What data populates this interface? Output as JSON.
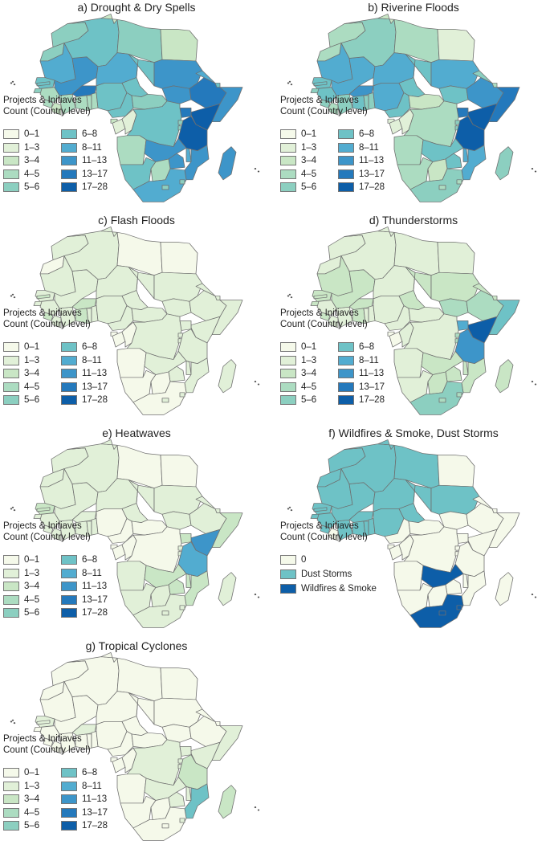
{
  "legend_title_line1": "Projects & Initiaves",
  "legend_title_line2": "Count (Country level)",
  "count_bins": [
    {
      "label": "0–1",
      "color": "#f5f9ea"
    },
    {
      "label": "1–3",
      "color": "#e1f0d8"
    },
    {
      "label": "3–4",
      "color": "#c9e6c5"
    },
    {
      "label": "4–5",
      "color": "#acdcc1"
    },
    {
      "label": "5–6",
      "color": "#8ccfc0"
    },
    {
      "label": "6–8",
      "color": "#6ec2c6"
    },
    {
      "label": "8–11",
      "color": "#52acd0"
    },
    {
      "label": "11–13",
      "color": "#3d95c9"
    },
    {
      "label": "13–17",
      "color": "#2479bc"
    },
    {
      "label": "17–28",
      "color": "#0d5ea8"
    }
  ],
  "hazard_legend": [
    {
      "label": "0",
      "color": "#f5f9ea"
    },
    {
      "label": "Dust Storms",
      "color": "#6ec2c6"
    },
    {
      "label": "Wildfires & Smoke",
      "color": "#0d5ea8"
    }
  ],
  "panels": [
    {
      "id": "a",
      "title": "a) Drought & Dry Spells",
      "legend": "count",
      "levels": {
        "morocco": 4,
        "wsahara": 4,
        "mauritania": 6,
        "senegal": 5,
        "gambia": 5,
        "guineabissau": 4,
        "guinea": 3,
        "sierraleone": 3,
        "liberia": 2,
        "ivorycoast": 3,
        "mali": 7,
        "burkina": 8,
        "ghana": 3,
        "togo": 3,
        "benin": 3,
        "algeria": 5,
        "tunisia": 2,
        "libya": 4,
        "niger": 6,
        "nigeria": 5,
        "egypt": 2,
        "chad": 5,
        "sudan": 7,
        "southsudan": 7,
        "ethiopia": 8,
        "eritrea": 6,
        "djibouti": 5,
        "somalia": 7,
        "kenya": 9,
        "uganda": 8,
        "cameroon": 5,
        "car": 4,
        "eqguinea": 2,
        "gabon": 1,
        "congo": 1,
        "drc": 5,
        "rwanda": 4,
        "burundi": 4,
        "tanzania": 9,
        "angola": 3,
        "zambia": 7,
        "malawi": 6,
        "mozambique": 7,
        "zimbabwe": 7,
        "namibia": 5,
        "botswana": 3,
        "southafrica": 6,
        "lesotho": 4,
        "eswatini": 4,
        "madagascar": 7
      }
    },
    {
      "id": "b",
      "title": "b) Riverine Floods",
      "legend": "count",
      "levels": {
        "morocco": 3,
        "wsahara": 3,
        "mauritania": 6,
        "senegal": 5,
        "gambia": 5,
        "guineabissau": 4,
        "guinea": 5,
        "sierraleone": 4,
        "liberia": 3,
        "ivorycoast": 4,
        "mali": 6,
        "burkina": 7,
        "ghana": 5,
        "togo": 4,
        "benin": 4,
        "algeria": 4,
        "tunisia": 2,
        "libya": 3,
        "niger": 6,
        "nigeria": 6,
        "egypt": 1,
        "chad": 5,
        "sudan": 6,
        "southsudan": 5,
        "ethiopia": 7,
        "eritrea": 4,
        "djibouti": 3,
        "somalia": 8,
        "kenya": 9,
        "uganda": 8,
        "cameroon": 5,
        "car": 2,
        "eqguinea": 1,
        "gabon": 1,
        "congo": 1,
        "drc": 3,
        "rwanda": 4,
        "burundi": 4,
        "tanzania": 9,
        "angola": 3,
        "zambia": 5,
        "malawi": 6,
        "mozambique": 6,
        "zimbabwe": 5,
        "namibia": 3,
        "botswana": 2,
        "southafrica": 4,
        "lesotho": 3,
        "eswatini": 3,
        "madagascar": 4
      }
    },
    {
      "id": "c",
      "title": "c) Flash Floods",
      "legend": "count",
      "levels": {
        "morocco": 1,
        "wsahara": 0,
        "mauritania": 1,
        "senegal": 1,
        "gambia": 2,
        "guineabissau": 1,
        "guinea": 1,
        "sierraleone": 2,
        "liberia": 1,
        "ivorycoast": 1,
        "mali": 1,
        "burkina": 2,
        "ghana": 2,
        "togo": 1,
        "benin": 1,
        "algeria": 1,
        "tunisia": 1,
        "libya": 0,
        "niger": 1,
        "nigeria": 1,
        "egypt": 0,
        "chad": 1,
        "sudan": 1,
        "southsudan": 1,
        "ethiopia": 1,
        "eritrea": 1,
        "djibouti": 1,
        "somalia": 1,
        "kenya": 1,
        "uganda": 1,
        "cameroon": 1,
        "car": 1,
        "eqguinea": 0,
        "gabon": 0,
        "congo": 0,
        "drc": 1,
        "rwanda": 1,
        "burundi": 1,
        "tanzania": 1,
        "angola": 0,
        "zambia": 1,
        "malawi": 1,
        "mozambique": 1,
        "zimbabwe": 1,
        "namibia": 0,
        "botswana": 0,
        "southafrica": 0,
        "lesotho": 1,
        "eswatini": 1,
        "madagascar": 1
      }
    },
    {
      "id": "d",
      "title": "d) Thunderstorms",
      "legend": "count",
      "levels": {
        "morocco": 1,
        "wsahara": 1,
        "mauritania": 2,
        "senegal": 2,
        "gambia": 2,
        "guineabissau": 2,
        "guinea": 1,
        "sierraleone": 2,
        "liberia": 1,
        "ivorycoast": 1,
        "mali": 2,
        "burkina": 2,
        "ghana": 2,
        "togo": 1,
        "benin": 1,
        "algeria": 1,
        "tunisia": 1,
        "libya": 1,
        "niger": 1,
        "nigeria": 1,
        "egypt": 1,
        "chad": 2,
        "sudan": 2,
        "southsudan": 3,
        "ethiopia": 3,
        "eritrea": 2,
        "djibouti": 2,
        "somalia": 5,
        "kenya": 9,
        "uganda": 6,
        "cameroon": 1,
        "car": 1,
        "eqguinea": 0,
        "gabon": 0,
        "congo": 1,
        "drc": 1,
        "rwanda": 3,
        "burundi": 3,
        "tanzania": 7,
        "angola": 1,
        "zambia": 2,
        "malawi": 2,
        "mozambique": 2,
        "zimbabwe": 2,
        "namibia": 1,
        "botswana": 2,
        "southafrica": 4,
        "lesotho": 3,
        "eswatini": 3,
        "madagascar": 2
      }
    },
    {
      "id": "e",
      "title": "e) Heatwaves",
      "legend": "count",
      "levels": {
        "morocco": 1,
        "wsahara": 1,
        "mauritania": 1,
        "senegal": 2,
        "gambia": 2,
        "guineabissau": 1,
        "guinea": 1,
        "sierraleone": 1,
        "liberia": 1,
        "ivorycoast": 1,
        "mali": 1,
        "burkina": 1,
        "ghana": 1,
        "togo": 1,
        "benin": 1,
        "algeria": 1,
        "tunisia": 1,
        "libya": 0,
        "niger": 1,
        "nigeria": 0,
        "egypt": 0,
        "chad": 1,
        "sudan": 1,
        "southsudan": 1,
        "ethiopia": 1,
        "eritrea": 1,
        "djibouti": 1,
        "somalia": 2,
        "kenya": 7,
        "uganda": 2,
        "cameroon": 0,
        "car": 0,
        "eqguinea": 0,
        "gabon": 0,
        "congo": 0,
        "drc": 0,
        "rwanda": 1,
        "burundi": 1,
        "tanzania": 6,
        "angola": 1,
        "zambia": 2,
        "malawi": 2,
        "mozambique": 2,
        "zimbabwe": 2,
        "namibia": 1,
        "botswana": 1,
        "southafrica": 1,
        "lesotho": 1,
        "eswatini": 1,
        "madagascar": 1
      }
    },
    {
      "id": "f",
      "title": "f) Wildfires & Smoke, Dust Storms",
      "legend": "hazard",
      "levels": {
        "morocco": 1,
        "wsahara": 1,
        "mauritania": 1,
        "senegal": 1,
        "gambia": 1,
        "guineabissau": 1,
        "guinea": 1,
        "sierraleone": 1,
        "liberia": 0,
        "ivorycoast": 1,
        "mali": 1,
        "burkina": 1,
        "ghana": 1,
        "togo": 1,
        "benin": 1,
        "algeria": 1,
        "tunisia": 1,
        "libya": 1,
        "niger": 1,
        "nigeria": 1,
        "egypt": 0,
        "chad": 1,
        "sudan": 1,
        "southsudan": 0,
        "ethiopia": 0,
        "eritrea": 0,
        "djibouti": 0,
        "somalia": 0,
        "kenya": 0,
        "uganda": 0,
        "cameroon": 0,
        "car": 0,
        "eqguinea": 0,
        "gabon": 0,
        "congo": 0,
        "drc": 0,
        "rwanda": 0,
        "burundi": 0,
        "tanzania": 0,
        "angola": 0,
        "zambia": 2,
        "malawi": 0,
        "mozambique": 0,
        "zimbabwe": 0,
        "namibia": 0,
        "botswana": 0,
        "southafrica": 2,
        "lesotho": 2,
        "eswatini": 2,
        "madagascar": 0
      }
    },
    {
      "id": "g",
      "title": "g) Tropical Cyclones",
      "legend": "count",
      "levels": {
        "morocco": 0,
        "wsahara": 0,
        "mauritania": 0,
        "senegal": 1,
        "gambia": 1,
        "guineabissau": 0,
        "guinea": 0,
        "sierraleone": 0,
        "liberia": 0,
        "ivorycoast": 0,
        "mali": 0,
        "burkina": 1,
        "ghana": 0,
        "togo": 0,
        "benin": 0,
        "algeria": 0,
        "tunisia": 0,
        "libya": 0,
        "niger": 0,
        "nigeria": 0,
        "egypt": 0,
        "chad": 0,
        "sudan": 0,
        "southsudan": 0,
        "ethiopia": 0,
        "eritrea": 0,
        "djibouti": 0,
        "somalia": 1,
        "kenya": 1,
        "uganda": 1,
        "cameroon": 0,
        "car": 0,
        "eqguinea": 0,
        "gabon": 0,
        "congo": 0,
        "drc": 1,
        "rwanda": 1,
        "burundi": 1,
        "tanzania": 2,
        "angola": 0,
        "zambia": 1,
        "malawi": 1,
        "mozambique": 5,
        "zimbabwe": 1,
        "namibia": 0,
        "botswana": 0,
        "southafrica": 0,
        "lesotho": 0,
        "eswatini": 1,
        "madagascar": 2
      }
    }
  ]
}
